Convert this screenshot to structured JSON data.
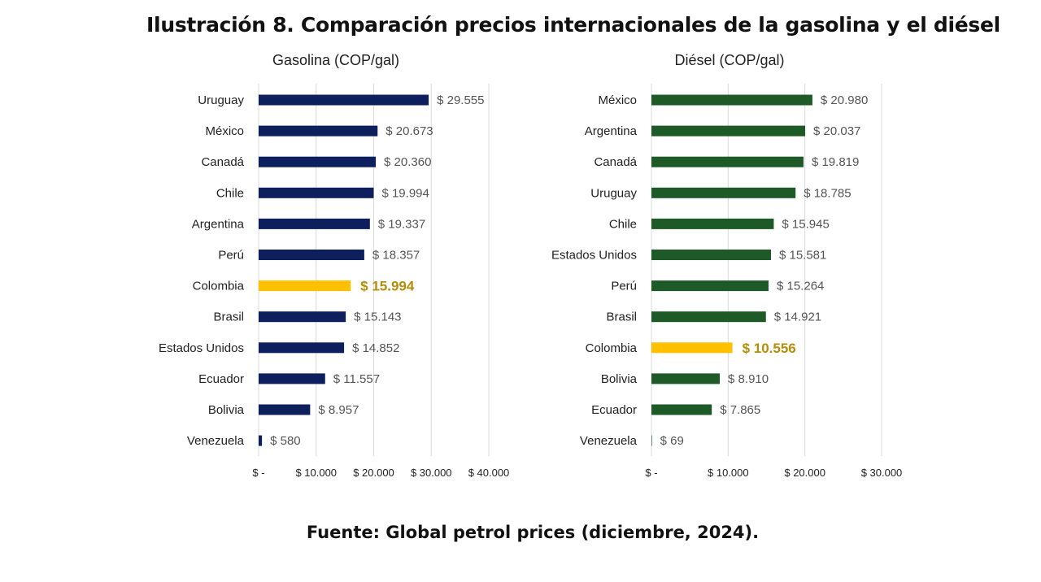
{
  "page": {
    "title": "Ilustración 8. Comparación precios internacionales de la gasolina y el diésel",
    "source": "Fuente: Global petrol prices (diciembre, 2024)."
  },
  "chart_data": [
    {
      "type": "bar",
      "orientation": "horizontal",
      "title": "Gasolina (COP/gal)",
      "categories": [
        "Uruguay",
        "México",
        "Canadá",
        "Chile",
        "Argentina",
        "Perú",
        "Colombia",
        "Brasil",
        "Estados Unidos",
        "Ecuador",
        "Bolivia",
        "Venezuela"
      ],
      "values": [
        29555,
        20673,
        20360,
        19994,
        19337,
        18357,
        15994,
        15143,
        14852,
        11557,
        8957,
        580
      ],
      "value_labels": [
        "$ 29.555",
        "$ 20.673",
        "$ 20.360",
        "$ 19.994",
        "$ 19.337",
        "$ 18.357",
        "$ 15.994",
        "$ 15.143",
        "$ 14.852",
        "$ 11.557",
        "$ 8.957",
        "$ 580"
      ],
      "highlight_category": "Colombia",
      "bar_color": "#0d1f5c",
      "highlight_color": "#ffc000",
      "xlim": [
        0,
        40000
      ],
      "xticks": [
        0,
        10000,
        20000,
        30000,
        40000
      ],
      "xtick_labels": [
        "$ -",
        "$ 10.000",
        "$ 20.000",
        "$ 30.000",
        "$ 40.000"
      ],
      "grid": "vertical"
    },
    {
      "type": "bar",
      "orientation": "horizontal",
      "title": "Diésel (COP/gal)",
      "categories": [
        "México",
        "Argentina",
        "Canadá",
        "Uruguay",
        "Chile",
        "Estados Unidos",
        "Perú",
        "Brasil",
        "Colombia",
        "Bolivia",
        "Ecuador",
        "Venezuela"
      ],
      "values": [
        20980,
        20037,
        19819,
        18785,
        15945,
        15581,
        15264,
        14921,
        10556,
        8910,
        7865,
        69
      ],
      "value_labels": [
        "$ 20.980",
        "$ 20.037",
        "$ 19.819",
        "$ 18.785",
        "$ 15.945",
        "$ 15.581",
        "$ 15.264",
        "$ 14.921",
        "$ 10.556",
        "$ 8.910",
        "$ 7.865",
        "$ 69"
      ],
      "highlight_category": "Colombia",
      "bar_color": "#1e5a28",
      "highlight_color": "#ffc000",
      "xlim": [
        0,
        30000
      ],
      "xticks": [
        0,
        10000,
        20000,
        30000
      ],
      "xtick_labels": [
        "$ -",
        "$ 10.000",
        "$ 20.000",
        "$ 30.000"
      ],
      "grid": "vertical"
    }
  ]
}
